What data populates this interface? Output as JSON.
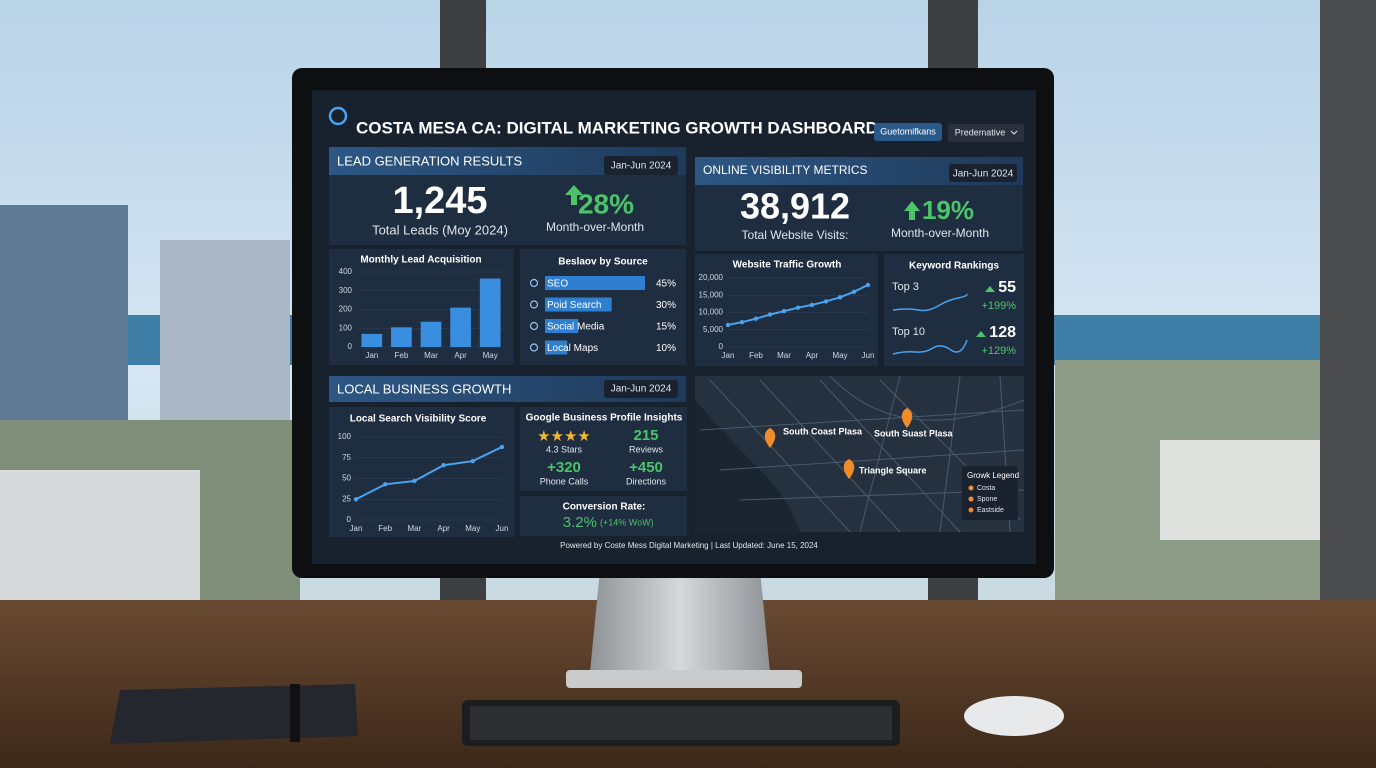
{
  "header": {
    "title": "COSTA MESA CA: DIGITAL MARKETING GROWTH DASHBOARD",
    "buttons": [
      "Guetomifkans",
      "Predemative"
    ]
  },
  "lead_generation": {
    "title": "LEAD GENERATION RESULTS",
    "period": "Jan-Jun 2024",
    "total": "1,245",
    "total_label": "Total Leads (Moy 2024)",
    "change": "28%",
    "change_label": "Month-over-Month"
  },
  "online_visibility": {
    "title": "ONLINE VISIBILITY METRICS",
    "period": "Jan-Jun 2024",
    "total": "38,912",
    "total_label": "Total Website Visits:",
    "change": "19%",
    "change_label": "Month-over-Month"
  },
  "local_business": {
    "title": "LOCAL BUSINESS GROWTH",
    "period": "Jan-Jun 2024"
  },
  "keyword_rankings": {
    "title": "Keyword Rankings",
    "rows": [
      {
        "label": "Top 3",
        "value": "55",
        "change": "+199%"
      },
      {
        "label": "Top 10",
        "value": "128",
        "change": "+129%"
      }
    ]
  },
  "google_business": {
    "title": "Google Business Profile Insights",
    "rating": "4.3 Stars",
    "reviews": "215",
    "reviews_label": "Reviews",
    "calls": "+320",
    "calls_label": "Phone Calls",
    "directions": "+450",
    "directions_label": "Directions"
  },
  "conversion": {
    "title": "Conversion Rate:",
    "value": "3.2%",
    "change": "(+14% WoW)"
  },
  "map": {
    "places": [
      "South Coast Plasa",
      "South Suast Plasa",
      "Triangle Square"
    ],
    "legend_title": "Growk Legend",
    "legend": [
      "Costa",
      "Spone",
      "Eastside"
    ]
  },
  "footer": "Powered by Coste Mess Digital Marketing | Last Updated: June 15, 2024",
  "chart_data": [
    {
      "type": "bar",
      "title": "Monthly Lead Acquisition",
      "categories": [
        "Jan",
        "Feb",
        "Mar",
        "Apr",
        "May"
      ],
      "values": [
        70,
        105,
        135,
        210,
        365
      ],
      "color": "#3a8ee0",
      "ylim": [
        0,
        400
      ],
      "yticks": [
        0,
        100,
        200,
        300,
        400
      ]
    },
    {
      "type": "hbar",
      "title": "Beslaov by Source",
      "categories": [
        "SEO",
        "Poid Search",
        "Social Media",
        "Local Maps"
      ],
      "values": [
        45,
        30,
        15,
        10
      ],
      "value_labels": [
        "45%",
        "30%",
        "15%",
        "10%"
      ],
      "color": "#2f7fd1"
    },
    {
      "type": "line",
      "title": "Website Traffic Growth",
      "categories": [
        "Jan",
        null,
        "Feb",
        null,
        "Mar",
        null,
        "Apr",
        null,
        "May",
        null,
        "Jun"
      ],
      "values": [
        6400,
        7200,
        8200,
        9400,
        10400,
        11400,
        12200,
        13200,
        14400,
        16000,
        18000
      ],
      "color": "#4aa3ef",
      "ylim": [
        0,
        20000
      ],
      "yticks": [
        0,
        {
          "value": 5000,
          "label": "5,000"
        },
        {
          "value": 10000,
          "label": "10,000"
        },
        {
          "value": 15000,
          "label": "15,000"
        },
        {
          "value": 20000,
          "label": "20,000"
        }
      ]
    },
    {
      "type": "line",
      "title": "Local Search Visibility Score",
      "categories": [
        "Jan",
        "Feb",
        "Mar",
        "Apr",
        "May",
        "Jun"
      ],
      "values": [
        25,
        43,
        47,
        66,
        71,
        88
      ],
      "color": "#4aa3ef",
      "ylim": [
        0,
        100
      ],
      "yticks": [
        0,
        25,
        50,
        75,
        100
      ]
    }
  ]
}
